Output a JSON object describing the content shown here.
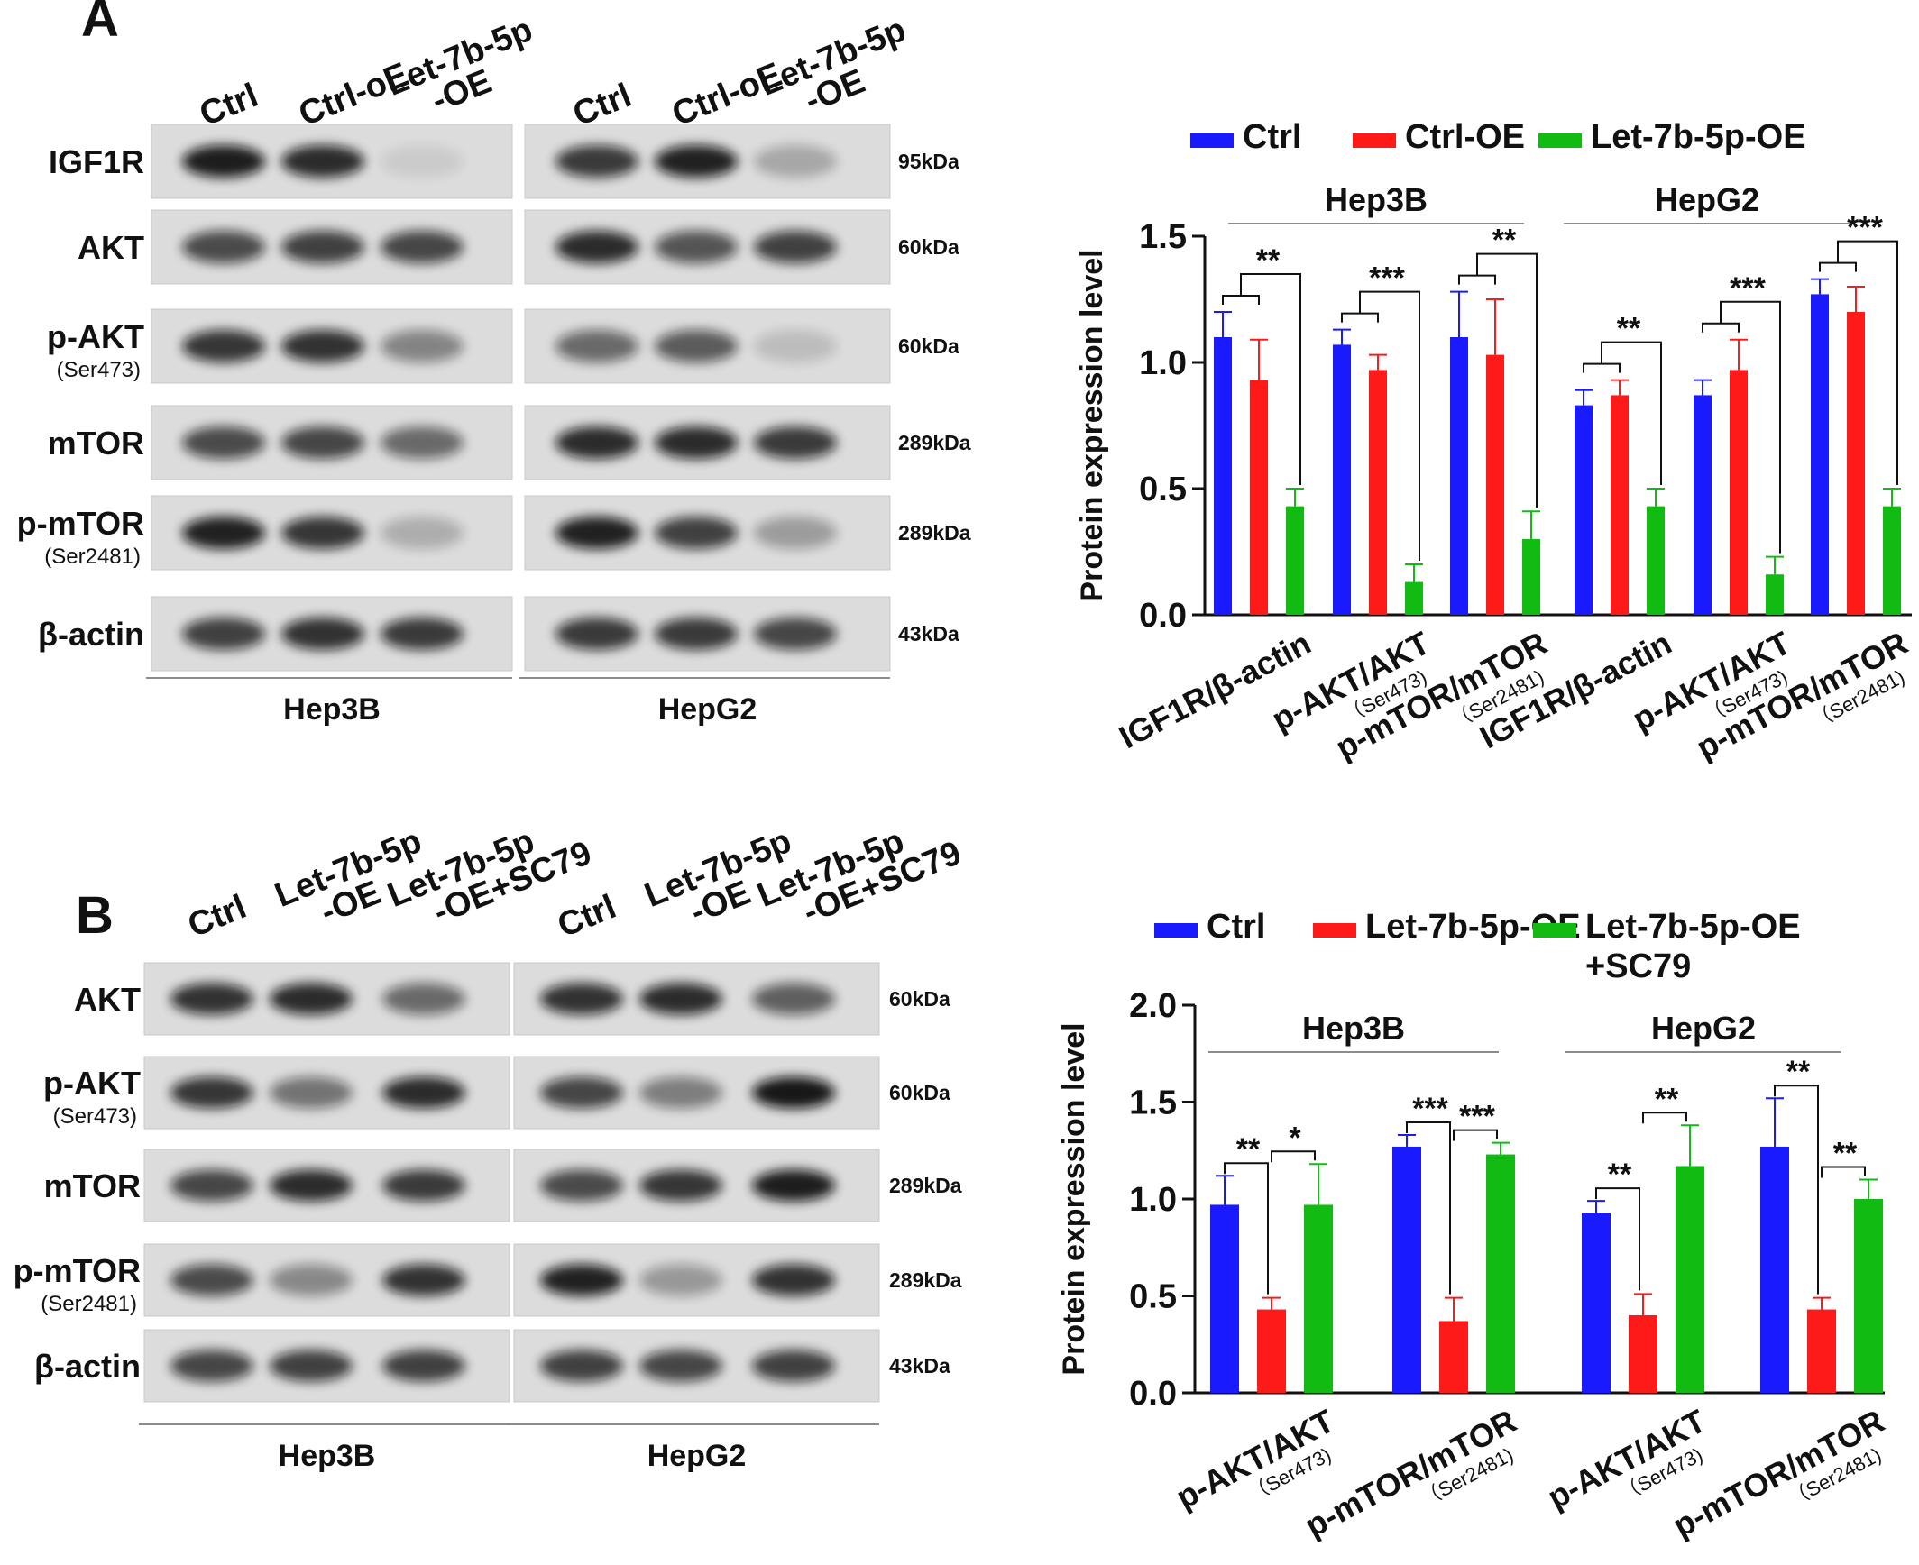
{
  "panels": [
    {
      "letter": "A",
      "blot": {
        "lanes_hep3b": [
          "Ctrl",
          "Ctrl-oE",
          "Let-7b-5p\n-OE"
        ],
        "lanes_hepg2": [
          "Ctrl",
          "Ctrl-oE",
          "Let-7b-5p\n-OE"
        ],
        "rows": [
          {
            "protein": "IGF1R",
            "sub": "",
            "kda": "95kDa",
            "hep3b": [
              0.92,
              0.85,
              0.08
            ],
            "hepg2": [
              0.78,
              0.9,
              0.25
            ]
          },
          {
            "protein": "AKT",
            "sub": "",
            "kda": "60kDa",
            "hep3b": [
              0.7,
              0.75,
              0.72
            ],
            "hepg2": [
              0.85,
              0.65,
              0.75
            ]
          },
          {
            "protein": "p-AKT",
            "sub": "(Ser473)",
            "kda": "60kDa",
            "hep3b": [
              0.8,
              0.82,
              0.42
            ],
            "hepg2": [
              0.55,
              0.62,
              0.15
            ]
          },
          {
            "protein": "mTOR",
            "sub": "",
            "kda": "289kDa",
            "hep3b": [
              0.7,
              0.72,
              0.55
            ],
            "hepg2": [
              0.85,
              0.85,
              0.78
            ]
          },
          {
            "protein": "p-mTOR",
            "sub": "(Ser2481)",
            "kda": "289kDa",
            "hep3b": [
              0.9,
              0.8,
              0.22
            ],
            "hepg2": [
              0.9,
              0.75,
              0.3
            ]
          },
          {
            "protein": "β-actin",
            "sub": "",
            "kda": "43kDa",
            "hep3b": [
              0.75,
              0.82,
              0.78
            ],
            "hepg2": [
              0.78,
              0.78,
              0.72
            ]
          }
        ],
        "cell_lines": [
          "Hep3B",
          "HepG2"
        ]
      }
    },
    {
      "letter": "B",
      "blot": {
        "lanes_hep3b": [
          "Ctrl",
          "Let-7b-5p\n-OE",
          "Let-7b-5p\n-OE+SC79"
        ],
        "lanes_hepg2": [
          "Ctrl",
          "Let-7b-5p\n-OE",
          "Let-7b-5p\n-OE+SC79"
        ],
        "rows": [
          {
            "protein": "AKT",
            "sub": "",
            "kda": "60kDa",
            "hep3b": [
              0.82,
              0.85,
              0.55
            ],
            "hepg2": [
              0.82,
              0.85,
              0.6
            ]
          },
          {
            "protein": "p-AKT",
            "sub": "(Ser473)",
            "kda": "60kDa",
            "hep3b": [
              0.8,
              0.5,
              0.85
            ],
            "hepg2": [
              0.72,
              0.45,
              0.95
            ]
          },
          {
            "protein": "mTOR",
            "sub": "",
            "kda": "289kDa",
            "hep3b": [
              0.72,
              0.85,
              0.78
            ],
            "hepg2": [
              0.7,
              0.8,
              0.92
            ]
          },
          {
            "protein": "p-mTOR",
            "sub": "(Ser2481)",
            "kda": "289kDa",
            "hep3b": [
              0.7,
              0.4,
              0.82
            ],
            "hepg2": [
              0.9,
              0.32,
              0.82
            ]
          },
          {
            "protein": "β-actin",
            "sub": "",
            "kda": "43kDa",
            "hep3b": [
              0.72,
              0.75,
              0.75
            ],
            "hepg2": [
              0.75,
              0.72,
              0.75
            ]
          }
        ],
        "cell_lines": [
          "Hep3B",
          "HepG2"
        ]
      }
    }
  ],
  "chart_data": [
    {
      "type": "bar",
      "panel": "A",
      "ylabel": "Protein expression level",
      "ylim": [
        0,
        1.5
      ],
      "yticks": [
        "0.0",
        "0.5",
        "1.0",
        "1.5"
      ],
      "groups": [
        "Hep3B",
        "HepG2"
      ],
      "categories": [
        {
          "label": "IGF1R/β-actin",
          "sub": ""
        },
        {
          "label": "p-AKT/AKT",
          "sub": "（Ser473)"
        },
        {
          "label": "p-mTOR/mTOR",
          "sub": "（Ser2481)"
        },
        {
          "label": "IGF1R/β-actin",
          "sub": ""
        },
        {
          "label": "p-AKT/AKT",
          "sub": "（Ser473)"
        },
        {
          "label": "p-mTOR/mTOR",
          "sub": "（Ser2481)"
        }
      ],
      "series": [
        {
          "name": "Ctrl",
          "color": "#1a1aff",
          "values": [
            1.1,
            1.07,
            1.1,
            0.83,
            0.87,
            1.27
          ],
          "errors": [
            0.1,
            0.06,
            0.18,
            0.06,
            0.06,
            0.06
          ]
        },
        {
          "name": "Ctrl-OE",
          "color": "#ff1a1a",
          "values": [
            0.93,
            0.97,
            1.03,
            0.87,
            0.97,
            1.2
          ],
          "errors": [
            0.16,
            0.06,
            0.22,
            0.06,
            0.12,
            0.1
          ]
        },
        {
          "name": "Let-7b-5p-OE",
          "color": "#11bb11",
          "values": [
            0.43,
            0.13,
            0.3,
            0.43,
            0.16,
            0.43
          ],
          "errors": [
            0.07,
            0.07,
            0.11,
            0.07,
            0.07,
            0.07
          ]
        }
      ],
      "significance": [
        "**",
        "***",
        "**",
        "**",
        "***",
        "***"
      ],
      "legend": "top"
    },
    {
      "type": "bar",
      "panel": "B",
      "ylabel": "Protein expression level",
      "ylim": [
        0,
        2.0
      ],
      "yticks": [
        "0.0",
        "0.5",
        "1.0",
        "1.5",
        "2.0"
      ],
      "groups": [
        "Hep3B",
        "HepG2"
      ],
      "categories": [
        {
          "label": "p-AKT/AKT",
          "sub": "（Ser473)"
        },
        {
          "label": "p-mTOR/mTOR",
          "sub": "（Ser2481)"
        },
        {
          "label": "p-AKT/AKT",
          "sub": "（Ser473)"
        },
        {
          "label": "p-mTOR/mTOR",
          "sub": "（Ser2481)"
        }
      ],
      "series": [
        {
          "name": "Ctrl",
          "color": "#1a1aff",
          "values": [
            0.97,
            1.27,
            0.93,
            1.27
          ],
          "errors": [
            0.15,
            0.06,
            0.06,
            0.25
          ]
        },
        {
          "name": "Let-7b-5p-OE",
          "color": "#ff1a1a",
          "values": [
            0.43,
            0.37,
            0.4,
            0.43
          ],
          "errors": [
            0.06,
            0.12,
            0.11,
            0.06
          ]
        },
        {
          "name": "Let-7b-5p-OE\n+SC79",
          "color": "#11bb11",
          "values": [
            0.97,
            1.23,
            1.17,
            1.0
          ],
          "errors": [
            0.21,
            0.06,
            0.21,
            0.1
          ]
        }
      ],
      "significance": [
        [
          "**",
          "*"
        ],
        [
          "***",
          "***"
        ],
        [
          "**",
          "**"
        ],
        [
          "**",
          "**"
        ]
      ],
      "legend": "top"
    }
  ]
}
